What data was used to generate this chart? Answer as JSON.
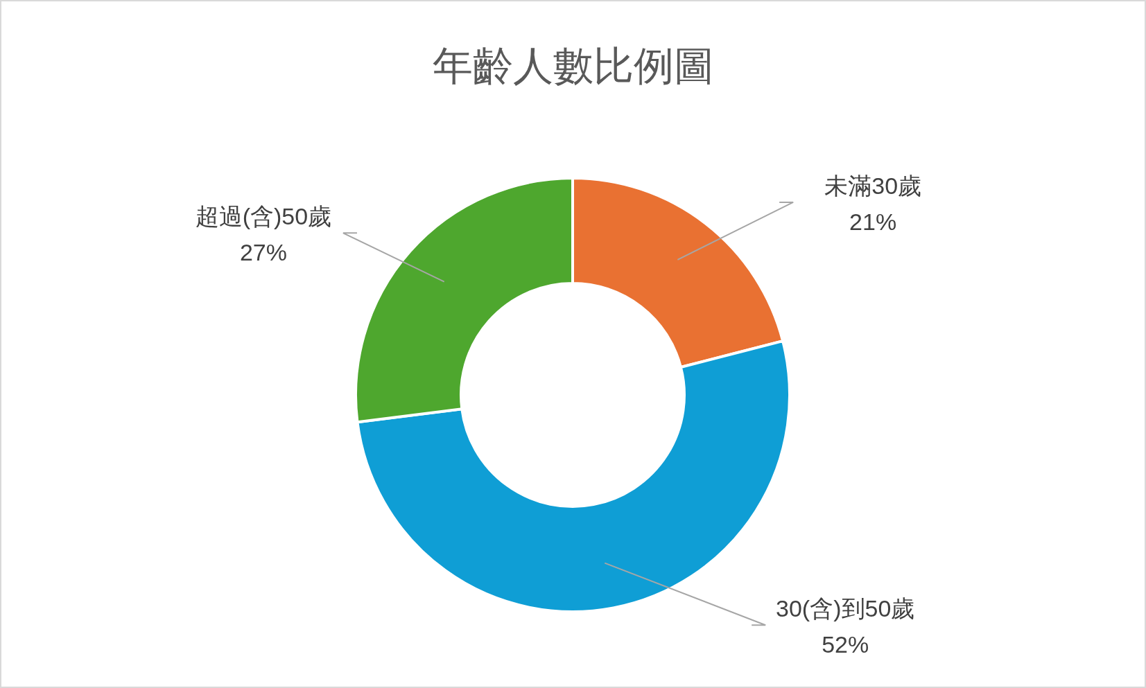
{
  "chart_data": {
    "type": "donut",
    "title": "年齡人數比例圖",
    "categories": [
      "未滿30歲",
      "30(含)到50歲",
      "超過(含)50歲"
    ],
    "values": [
      21,
      52,
      27
    ],
    "colors": [
      "#e97132",
      "#0f9ed5",
      "#4ea72e"
    ],
    "value_labels": [
      "21%",
      "52%",
      "27%"
    ]
  }
}
